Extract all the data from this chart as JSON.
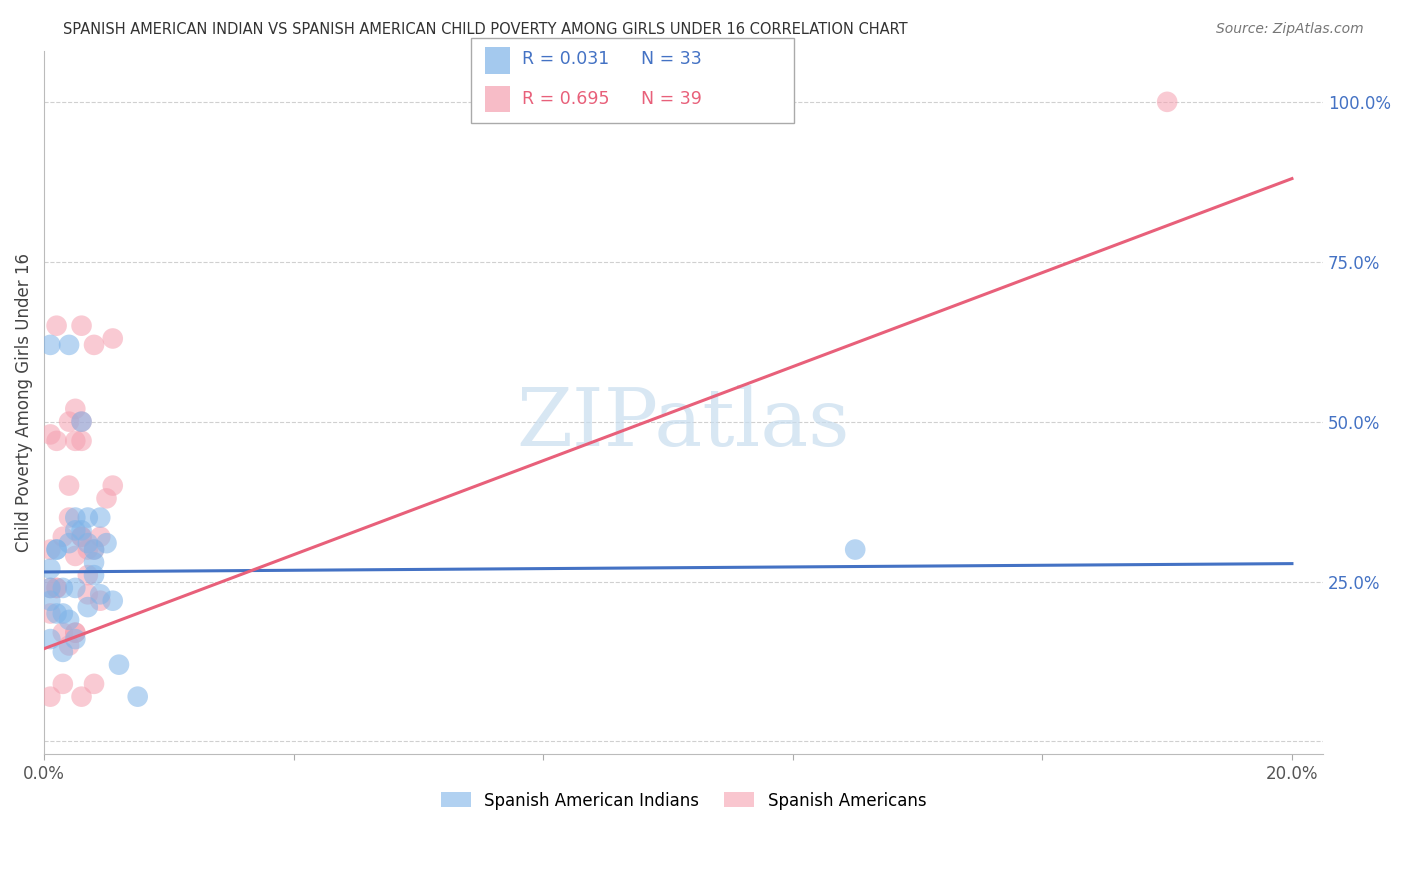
{
  "title": "SPANISH AMERICAN INDIAN VS SPANISH AMERICAN CHILD POVERTY AMONG GIRLS UNDER 16 CORRELATION CHART",
  "source": "Source: ZipAtlas.com",
  "ylabel": "Child Poverty Among Girls Under 16",
  "right_ytick_labels": [
    "",
    "25.0%",
    "50.0%",
    "75.0%",
    "100.0%"
  ],
  "right_ytick_vals": [
    0.0,
    0.25,
    0.5,
    0.75,
    1.0
  ],
  "legend_blue_r": "R = 0.031",
  "legend_blue_n": "N = 33",
  "legend_pink_r": "R = 0.695",
  "legend_pink_n": "N = 39",
  "legend_label_blue": "Spanish American Indians",
  "legend_label_pink": "Spanish Americans",
  "blue_color": "#7EB3E8",
  "pink_color": "#F5A0B0",
  "blue_line_color": "#4472C4",
  "pink_line_color": "#E8607A",
  "text_blue": "#4472C4",
  "text_pink": "#E8607A",
  "watermark_text": "ZIPatlas",
  "background_color": "#ffffff",
  "grid_color": "#d0d0d0",
  "blue_scatter_x": [
    0.001,
    0.004,
    0.006,
    0.009,
    0.002,
    0.005,
    0.007,
    0.001,
    0.003,
    0.006,
    0.009,
    0.011,
    0.001,
    0.002,
    0.004,
    0.005,
    0.007,
    0.008,
    0.001,
    0.003,
    0.005,
    0.008,
    0.01,
    0.001,
    0.002,
    0.004,
    0.007,
    0.012,
    0.015,
    0.005,
    0.003,
    0.008,
    0.13
  ],
  "blue_scatter_y": [
    0.62,
    0.62,
    0.5,
    0.35,
    0.3,
    0.35,
    0.35,
    0.24,
    0.24,
    0.33,
    0.23,
    0.22,
    0.27,
    0.3,
    0.31,
    0.33,
    0.31,
    0.3,
    0.22,
    0.2,
    0.24,
    0.28,
    0.31,
    0.16,
    0.2,
    0.19,
    0.21,
    0.12,
    0.07,
    0.16,
    0.14,
    0.26,
    0.3
  ],
  "pink_scatter_x": [
    0.001,
    0.002,
    0.004,
    0.006,
    0.008,
    0.011,
    0.004,
    0.006,
    0.002,
    0.005,
    0.007,
    0.009,
    0.001,
    0.003,
    0.005,
    0.006,
    0.008,
    0.01,
    0.001,
    0.002,
    0.004,
    0.006,
    0.003,
    0.005,
    0.007,
    0.001,
    0.004,
    0.009,
    0.002,
    0.005,
    0.006,
    0.011,
    0.003,
    0.005,
    0.007,
    0.001,
    0.006,
    0.008,
    0.18
  ],
  "pink_scatter_y": [
    0.24,
    0.24,
    0.5,
    0.5,
    0.62,
    0.63,
    0.35,
    0.65,
    0.47,
    0.47,
    0.3,
    0.32,
    0.48,
    0.32,
    0.29,
    0.32,
    0.3,
    0.38,
    0.3,
    0.24,
    0.4,
    0.32,
    0.09,
    0.17,
    0.23,
    0.2,
    0.15,
    0.22,
    0.65,
    0.52,
    0.47,
    0.4,
    0.17,
    0.17,
    0.26,
    0.07,
    0.07,
    0.09,
    1.0
  ],
  "blue_line_x": [
    0.0,
    0.2
  ],
  "blue_line_y": [
    0.265,
    0.278
  ],
  "pink_line_x": [
    0.0,
    0.2
  ],
  "pink_line_y": [
    0.145,
    0.88
  ],
  "xlim": [
    0.0,
    0.205
  ],
  "ylim": [
    -0.02,
    1.08
  ],
  "xtick_positions": [
    0.0,
    0.04,
    0.08,
    0.12,
    0.16,
    0.2
  ],
  "xtick_labels": [
    "0.0%",
    "",
    "",
    "",
    "",
    "20.0%"
  ]
}
